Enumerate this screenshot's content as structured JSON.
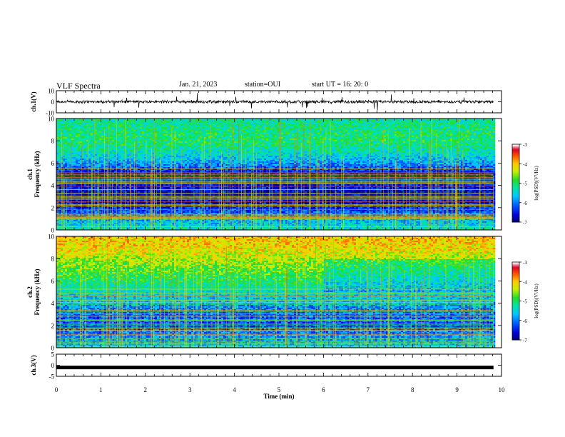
{
  "header": {
    "title": "VLF Spectra",
    "date": "Jan. 21, 2023",
    "station": "station=OUI",
    "start": "start UT =  16: 20: 0"
  },
  "chart_data": [
    {
      "type": "line",
      "panel": "ch1-waveform",
      "ylabel": "ch.1(V)",
      "ylim": [
        -10,
        10
      ],
      "yticks": [
        "10",
        "0",
        "-10"
      ],
      "xlim": [
        0,
        10
      ],
      "baseline": 0,
      "noise_amplitude": 1.2,
      "data_until": 9.82,
      "series_color": "#000000"
    },
    {
      "type": "heatmap",
      "panel": "ch1-spectrogram",
      "ylabel": "ch.1\nFrequency (kHz)",
      "ylim": [
        0,
        10
      ],
      "yticks": [
        "0",
        "2",
        "4",
        "6",
        "8",
        "10"
      ],
      "xlim": [
        0,
        10
      ],
      "data_until": 9.82,
      "colorbar": {
        "label": "log(PSD)(V²/Hz)",
        "range": [
          -7,
          -3
        ],
        "ticks": [
          "-3",
          "-4",
          "-5",
          "-6",
          "-7"
        ]
      },
      "profile_log_psd": [
        {
          "f": 0,
          "v": -5.3
        },
        {
          "f": 1,
          "v": -5.8
        },
        {
          "f": 2,
          "v": -6.4
        },
        {
          "f": 3,
          "v": -6.7
        },
        {
          "f": 4,
          "v": -6.5
        },
        {
          "f": 5,
          "v": -6.6
        },
        {
          "f": 6,
          "v": -5.8
        },
        {
          "f": 7,
          "v": -5.3
        },
        {
          "f": 8,
          "v": -5.0
        },
        {
          "f": 9,
          "v": -5.1
        },
        {
          "f": 10,
          "v": -5.2
        }
      ]
    },
    {
      "type": "heatmap",
      "panel": "ch2-spectrogram",
      "ylabel": "ch.2\nFrequency (kHz)",
      "ylim": [
        0,
        10
      ],
      "yticks": [
        "0",
        "2",
        "4",
        "6",
        "8",
        "10"
      ],
      "xlim": [
        0,
        10
      ],
      "data_until": 9.82,
      "colorbar": {
        "label": "log(PSD)(V²/Hz)",
        "range": [
          -7,
          -3
        ],
        "ticks": [
          "-3",
          "-4",
          "-5",
          "-6",
          "-7"
        ]
      },
      "profile_log_psd": [
        {
          "f": 0,
          "v": -5.6
        },
        {
          "f": 1,
          "v": -5.9
        },
        {
          "f": 2,
          "v": -6.3
        },
        {
          "f": 3,
          "v": -6.1
        },
        {
          "f": 4,
          "v": -5.8
        },
        {
          "f": 5,
          "v": -5.4
        },
        {
          "f": 6,
          "v": -5.0
        },
        {
          "f": 7,
          "v": -4.7
        },
        {
          "f": 8,
          "v": -4.4
        },
        {
          "f": 9,
          "v": -4.1
        },
        {
          "f": 10,
          "v": -4.0
        }
      ]
    },
    {
      "type": "line",
      "panel": "ch3-waveform",
      "ylabel": "ch.3(V)",
      "ylim": [
        -5,
        5
      ],
      "yticks": [
        "5",
        "0",
        "-5"
      ],
      "xlim": [
        0,
        10
      ],
      "baseline": -1,
      "data_until": 9.82,
      "series_color": "#000000"
    }
  ],
  "xaxis": {
    "label": "Time (min)",
    "ticks": [
      "0",
      "1",
      "2",
      "3",
      "4",
      "5",
      "6",
      "7",
      "8",
      "9",
      "10"
    ]
  }
}
